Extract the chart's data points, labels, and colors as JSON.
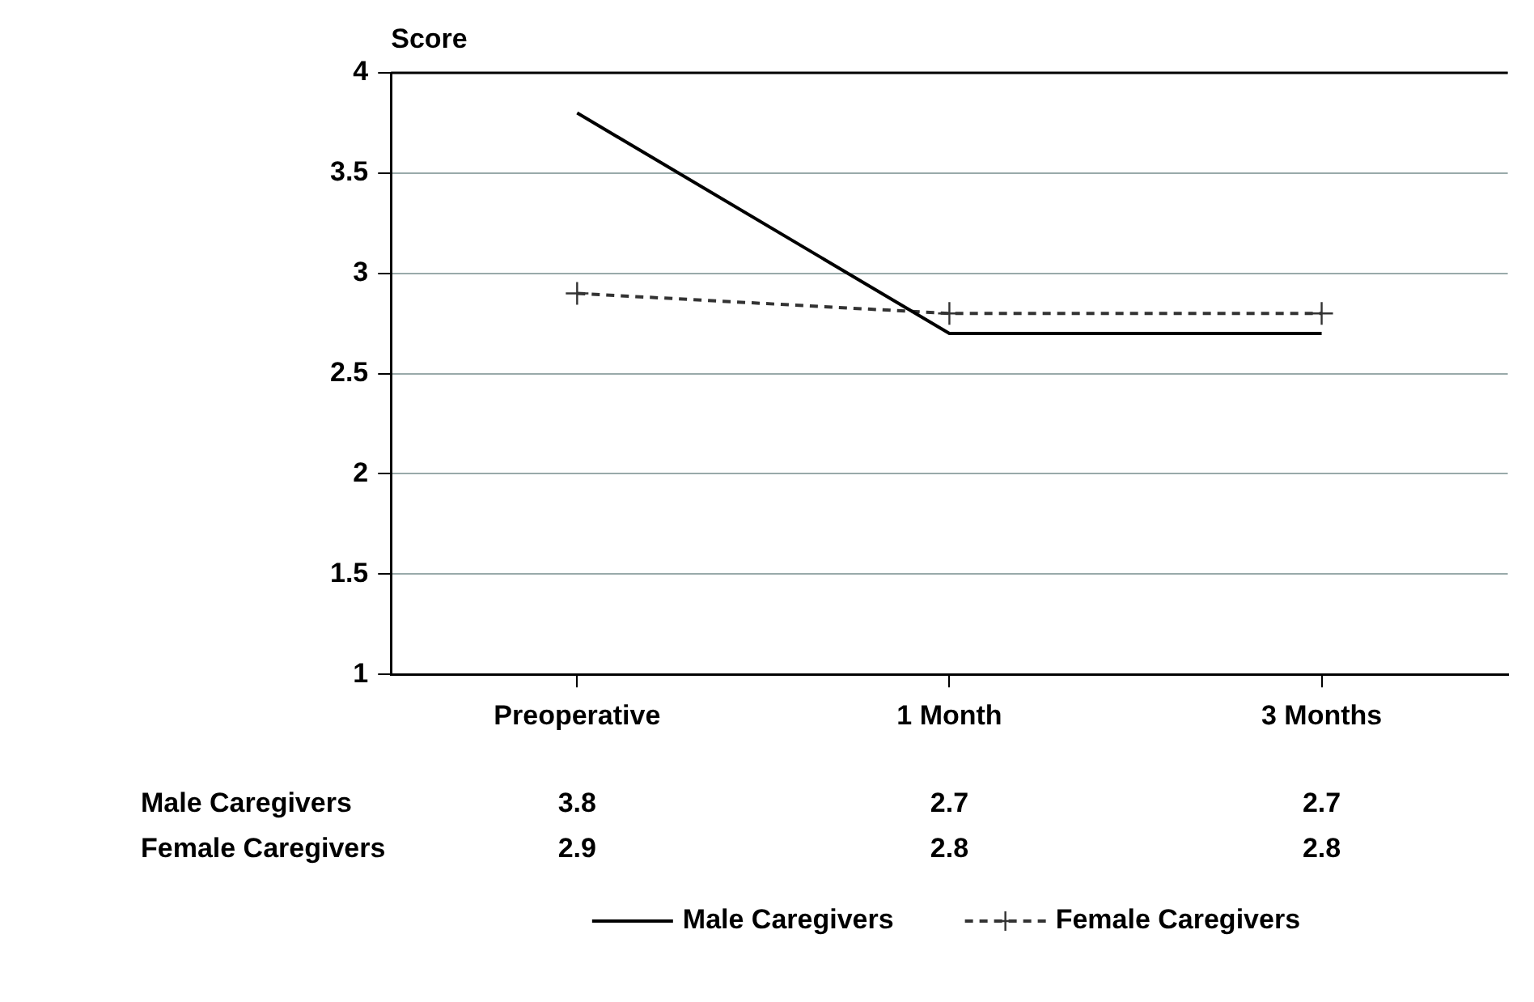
{
  "chart_data": {
    "type": "line",
    "ylabel": "Score",
    "categories": [
      "Preoperative",
      "1 Month",
      "3 Months"
    ],
    "series": [
      {
        "name": "Male Caregivers",
        "color": "#000000",
        "values": [
          3.8,
          2.7,
          2.7
        ],
        "marker": "none",
        "line_style": "solid"
      },
      {
        "name": "Female Caregivers",
        "color": "#333333",
        "values": [
          2.9,
          2.8,
          2.8
        ],
        "marker": "cross",
        "line_style": "dashed"
      }
    ],
    "ylim": [
      1,
      4
    ],
    "yticks": [
      1,
      1.5,
      2,
      2.5,
      3,
      3.5,
      4
    ],
    "grid": "y",
    "legend": "bottom",
    "data_labels": true
  }
}
